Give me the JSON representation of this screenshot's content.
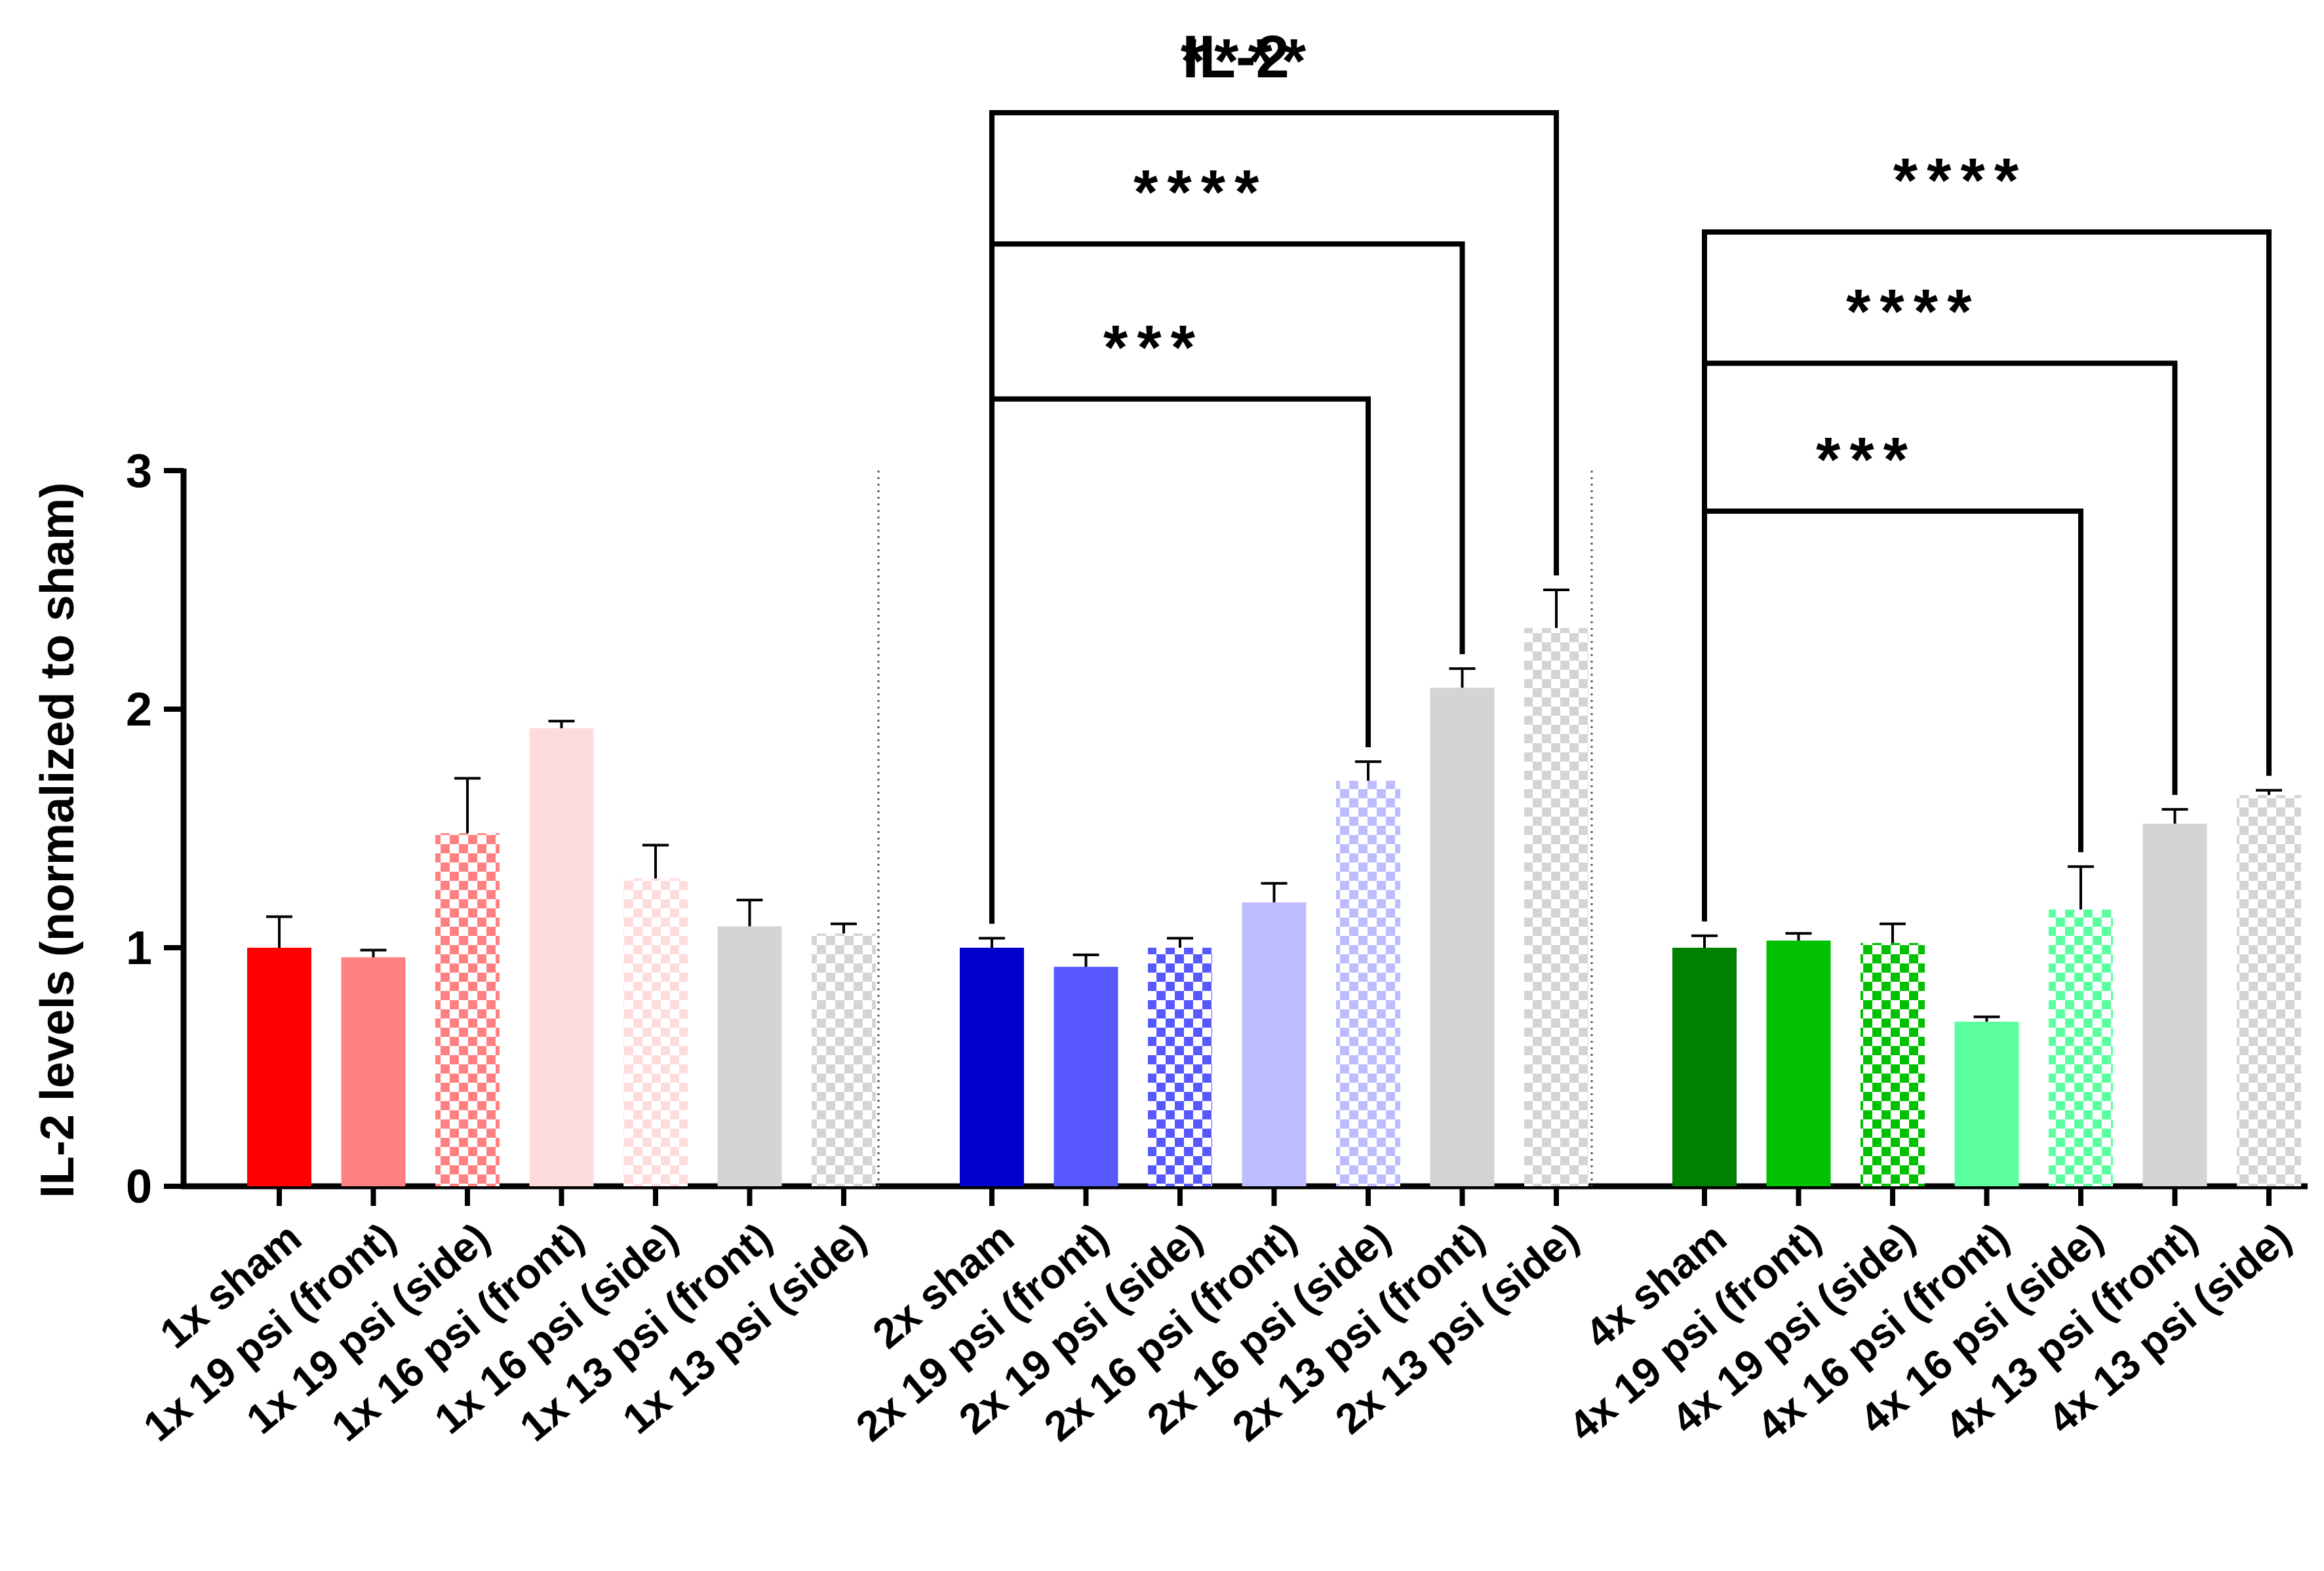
{
  "chart_data": {
    "type": "bar",
    "title": "IL-2",
    "xlabel": "",
    "ylabel": "IL-2 levels (normalized to sham)",
    "ylim": [
      0,
      3
    ],
    "yticks": [
      "0",
      "1",
      "2",
      "3"
    ],
    "grid": false,
    "groups": [
      {
        "name": "1x",
        "bars": [
          {
            "label": "1x sham",
            "value": 1.0,
            "error": 0.13,
            "color": "#ff0000",
            "pattern": "solid"
          },
          {
            "label": "1x 19 psi (front)",
            "value": 0.96,
            "error": 0.03,
            "color": "#ff8080",
            "pattern": "solid"
          },
          {
            "label": "1x 19 psi (side)",
            "value": 1.48,
            "error": 0.23,
            "color": "#ff8080",
            "pattern": "checker"
          },
          {
            "label": "1x 16 psi (front)",
            "value": 1.92,
            "error": 0.03,
            "color": "#ffdcdc",
            "pattern": "solid"
          },
          {
            "label": "1x 16 psi (side)",
            "value": 1.29,
            "error": 0.14,
            "color": "#ffdcdc",
            "pattern": "checker"
          },
          {
            "label": "1x 13 psi (front)",
            "value": 1.09,
            "error": 0.11,
            "color": "#d4d4d4",
            "pattern": "solid"
          },
          {
            "label": "1x 13 psi (side)",
            "value": 1.06,
            "error": 0.04,
            "color": "#d4d4d4",
            "pattern": "checker"
          }
        ]
      },
      {
        "name": "2x",
        "bars": [
          {
            "label": "2x sham",
            "value": 1.0,
            "error": 0.04,
            "color": "#0000cc",
            "pattern": "solid"
          },
          {
            "label": "2x 19 psi (front)",
            "value": 0.92,
            "error": 0.05,
            "color": "#5858ff",
            "pattern": "solid"
          },
          {
            "label": "2x 19 psi (side)",
            "value": 1.0,
            "error": 0.04,
            "color": "#5858ff",
            "pattern": "checker"
          },
          {
            "label": "2x 16 psi (front)",
            "value": 1.19,
            "error": 0.08,
            "color": "#bcbcff",
            "pattern": "solid"
          },
          {
            "label": "2x 16 psi (side)",
            "value": 1.7,
            "error": 0.08,
            "color": "#bcbcff",
            "pattern": "checker"
          },
          {
            "label": "2x 13 psi (front)",
            "value": 2.09,
            "error": 0.08,
            "color": "#d4d4d4",
            "pattern": "solid"
          },
          {
            "label": "2x 13 psi (side)",
            "value": 2.34,
            "error": 0.16,
            "color": "#d4d4d4",
            "pattern": "checker"
          }
        ]
      },
      {
        "name": "4x",
        "bars": [
          {
            "label": "4x sham",
            "value": 1.0,
            "error": 0.05,
            "color": "#008000",
            "pattern": "solid"
          },
          {
            "label": "4x 19 psi (front)",
            "value": 1.03,
            "error": 0.03,
            "color": "#00c000",
            "pattern": "solid"
          },
          {
            "label": "4x 19 psi (side)",
            "value": 1.02,
            "error": 0.08,
            "color": "#00c000",
            "pattern": "checker"
          },
          {
            "label": "4x 16 psi (front)",
            "value": 0.69,
            "error": 0.02,
            "color": "#5cffa0",
            "pattern": "solid"
          },
          {
            "label": "4x 16 psi (side)",
            "value": 1.16,
            "error": 0.18,
            "color": "#5cffa0",
            "pattern": "checker"
          },
          {
            "label": "4x 13 psi (front)",
            "value": 1.52,
            "error": 0.06,
            "color": "#d4d4d4",
            "pattern": "solid"
          },
          {
            "label": "4x 13 psi (side)",
            "value": 1.64,
            "error": 0.02,
            "color": "#d4d4d4",
            "pattern": "checker"
          }
        ]
      }
    ],
    "significance": [
      {
        "group": 1,
        "from": 0,
        "to": 4,
        "label": "***",
        "level": 3.3
      },
      {
        "group": 1,
        "from": 0,
        "to": 5,
        "label": "****",
        "level": 3.95
      },
      {
        "group": 1,
        "from": 0,
        "to": 6,
        "label": "****",
        "level": 4.5
      },
      {
        "group": 2,
        "from": 0,
        "to": 4,
        "label": "***",
        "level": 2.83
      },
      {
        "group": 2,
        "from": 0,
        "to": 5,
        "label": "****",
        "level": 3.45
      },
      {
        "group": 2,
        "from": 0,
        "to": 6,
        "label": "****",
        "level": 4.0
      }
    ]
  }
}
